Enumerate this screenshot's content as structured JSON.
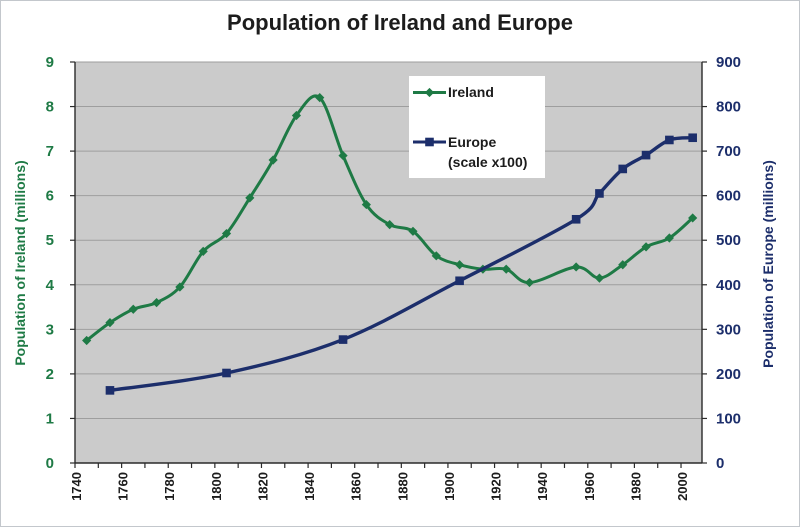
{
  "chart_data": {
    "type": "line",
    "title": "Population of Ireland and Europe",
    "plot_style": {
      "background": "#cbcbcb",
      "gridline_color": "#9e9e9e",
      "axis_line_color": "#2b2b2b",
      "x_tick_label_color": "#1c1c1c",
      "grid": "horizontal-only",
      "line_style": "smoothed"
    },
    "x_axis": {
      "min": 1740,
      "max": 2009,
      "tick_start": 1740,
      "tick_end": 2000,
      "tick_step": 10,
      "labels": [
        1740,
        1760,
        1780,
        1800,
        1820,
        1840,
        1860,
        1880,
        1900,
        1920,
        1940,
        1960,
        1980,
        2000
      ]
    },
    "left_axis": {
      "title": "Population of Ireland (millions)",
      "min": 0,
      "max": 9,
      "tick_step": 1,
      "color": "#1e7a45",
      "ticks": [
        0,
        1,
        2,
        3,
        4,
        5,
        6,
        7,
        8,
        9
      ]
    },
    "right_axis": {
      "title": "Population of Europe (millions)",
      "min": 0,
      "max": 900,
      "tick_step": 100,
      "color": "#1c2e6b",
      "ticks": [
        0,
        100,
        200,
        300,
        400,
        500,
        600,
        700,
        800,
        900
      ]
    },
    "legend": {
      "position": "inside-top-center",
      "background": "#ffffff"
    },
    "series": [
      {
        "name": "Ireland",
        "color": "#1e7a45",
        "marker": "diamond",
        "line_width": 3,
        "axis": "left",
        "unit": "millions",
        "points": [
          [
            1745,
            2.75
          ],
          [
            1755,
            3.15
          ],
          [
            1765,
            3.45
          ],
          [
            1775,
            3.6
          ],
          [
            1785,
            3.95
          ],
          [
            1795,
            4.75
          ],
          [
            1805,
            5.15
          ],
          [
            1815,
            5.95
          ],
          [
            1825,
            6.8
          ],
          [
            1835,
            7.8
          ],
          [
            1845,
            8.2
          ],
          [
            1855,
            6.9
          ],
          [
            1865,
            5.8
          ],
          [
            1875,
            5.35
          ],
          [
            1885,
            5.2
          ],
          [
            1895,
            4.65
          ],
          [
            1905,
            4.45
          ],
          [
            1915,
            4.35
          ],
          [
            1925,
            4.35
          ],
          [
            1935,
            4.05
          ],
          [
            1955,
            4.4
          ],
          [
            1965,
            4.15
          ],
          [
            1975,
            4.45
          ],
          [
            1985,
            4.85
          ],
          [
            1995,
            5.05
          ],
          [
            2005,
            5.5
          ]
        ]
      },
      {
        "name": "Europe",
        "legend_note": "(scale x100)",
        "color": "#1c2e6b",
        "marker": "square",
        "line_width": 3.4,
        "axis": "right",
        "unit": "millions",
        "scale_divisor": 100,
        "points": [
          [
            1755,
            163
          ],
          [
            1805,
            202
          ],
          [
            1855,
            277
          ],
          [
            1905,
            409
          ],
          [
            1955,
            547
          ],
          [
            1965,
            605
          ],
          [
            1975,
            660
          ],
          [
            1985,
            691
          ],
          [
            1995,
            725
          ],
          [
            2005,
            730
          ]
        ]
      }
    ]
  }
}
